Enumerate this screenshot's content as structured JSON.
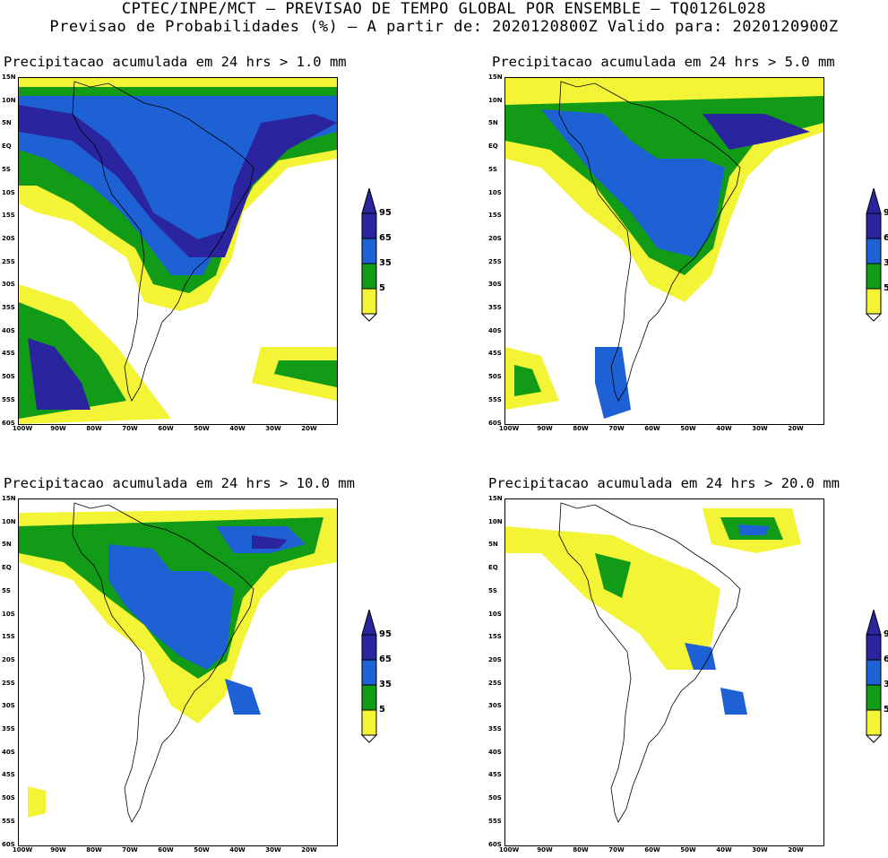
{
  "header": {
    "line1": "CPTEC/INPE/MCT – PREVISAO DE TEMPO GLOBAL POR ENSEMBLE – TQ0126L028",
    "line2": "Previsao de Probabilidades (%) –  A partir de: 2020120800Z  Valido para: 2020120900Z"
  },
  "axes": {
    "lat_labels": [
      "15N",
      "10N",
      "5N",
      "EQ",
      "5S",
      "10S",
      "15S",
      "20S",
      "25S",
      "30S",
      "35S",
      "40S",
      "45S",
      "50S",
      "55S",
      "60S"
    ],
    "lon_labels": [
      "100W",
      "90W",
      "80W",
      "70W",
      "60W",
      "50W",
      "40W",
      "30W",
      "20W"
    ]
  },
  "legend": {
    "levels": [
      "95",
      "65",
      "35",
      "5"
    ],
    "colors": {
      "c95": "#2a249e",
      "c65": "#1d61d4",
      "c35": "#119b17",
      "c5": "#f4f436"
    }
  },
  "panels": [
    {
      "title": "Precipitacao acumulada em 24 hrs > 1.0 mm"
    },
    {
      "title": "Precipitacao acumulada em 24 hrs > 5.0 mm"
    },
    {
      "title": "Precipitacao acumulada em 24 hrs > 10.0 mm"
    },
    {
      "title": "Precipitacao acumulada em 24 hrs > 20.0 mm"
    }
  ]
}
